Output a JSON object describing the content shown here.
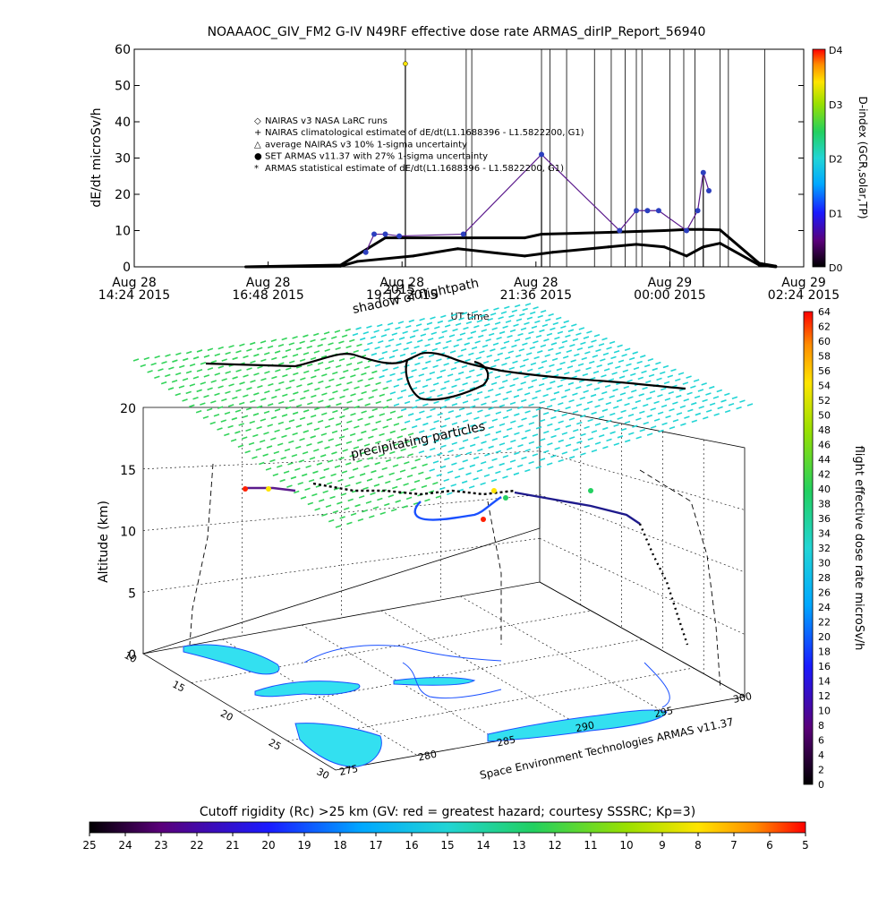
{
  "top_title": "NOAAAOC_GIV_FM2 G-IV    N49RF   effective dose rate ARMAS_dirIP_Report_56940",
  "footer_credit": "Space Environment Technologies ARMAS v11.37",
  "annotations": {
    "shadow": "shadow of flightpath",
    "precip": "precipitating particles",
    "date_overlap": "2015"
  },
  "colors": {
    "flight_black": "#000000",
    "nairas_purple": "#5b1a8c",
    "armas_blue": "#2c3fbf",
    "grid_green": "#33d35a",
    "grid_cyan": "#22d5d5",
    "land_cyan": "#33e0f0"
  },
  "chart_data": [
    {
      "type": "line",
      "ylabel": "dE/dt microSv/h",
      "xlabel": "UT time",
      "ylim": [
        0,
        60
      ],
      "yticks": [
        "0",
        "10",
        "20",
        "30",
        "40",
        "50",
        "60"
      ],
      "xticks": [
        {
          "d": "Aug 28",
          "t": "14:24 2015"
        },
        {
          "d": "Aug 28",
          "t": "16:48 2015"
        },
        {
          "d": "Aug 28",
          "t": "19:12 2015"
        },
        {
          "d": "Aug 28",
          "t": "21:36 2015"
        },
        {
          "d": "Aug 29",
          "t": "00:00 2015"
        },
        {
          "d": "Aug 29",
          "t": "02:24 2015"
        }
      ],
      "xlim_hours": [
        0,
        12
      ],
      "legend": [
        {
          "symbol": "◇",
          "label": "NAIRAS v3 NASA LaRC runs"
        },
        {
          "symbol": "+",
          "label": "NAIRAS climatological estimate of dE/dt(L1.1688396 - L1.5822200, G1)"
        },
        {
          "symbol": "△",
          "label": "average NAIRAS v3 10% 1-sigma uncertainty"
        },
        {
          "symbol": "●",
          "label": "SET ARMAS v11.37 with 27% 1-sigma uncertainty"
        },
        {
          "symbol": "*",
          "label": "ARMAS statistical estimate of dE/dt(L1.1688396 - L1.5822200, G1)"
        }
      ],
      "legend_position": "upper-center",
      "series": [
        {
          "name": "NAIRAS climatological estimate of dE/dt(L1.1688396 - L1.5822200, G1)",
          "x": [
            2.0,
            3.7,
            4.5,
            7.0,
            7.3,
            8.5,
            9.5,
            9.9,
            10.2,
            10.5,
            11.2,
            11.5
          ],
          "y": [
            0,
            0.5,
            8,
            8,
            9,
            9.5,
            10,
            10.3,
            10.3,
            10.2,
            1,
            0.2
          ]
        },
        {
          "name": "ARMAS statistical estimate of dE/dt(L1.1688396 - L1.5822200, G1)",
          "x": [
            2.0,
            3.7,
            4.0,
            5.0,
            5.8,
            6.5,
            7.0,
            7.5,
            8.5,
            9.0,
            9.5,
            9.9,
            10.2,
            10.5,
            11.2,
            11.5
          ],
          "y": [
            0,
            0.2,
            1.5,
            3,
            5,
            3.8,
            3,
            4,
            5.5,
            6.2,
            5.5,
            3,
            5.5,
            6.5,
            0.5,
            0
          ]
        },
        {
          "name": "SET ARMAS v11.37 with 27% 1-sigma uncertainty",
          "x": [
            4.15,
            4.3,
            4.5,
            4.75,
            5.9,
            7.3,
            8.7,
            9.0,
            9.2,
            9.4,
            9.9,
            10.1,
            10.2,
            10.3
          ],
          "y": [
            4,
            9,
            9,
            8.5,
            9,
            31,
            10,
            15.5,
            15.5,
            15.5,
            10,
            15.5,
            26,
            21
          ]
        }
      ],
      "spikes": [
        {
          "x": 4.86,
          "y": 56
        },
        {
          "x": 7.3,
          "y": 31
        },
        {
          "x": 10.2,
          "y": 26
        }
      ],
      "dindex": {
        "label": "D-index (GCR,solar,TP)",
        "ticks": [
          "D0",
          "D1",
          "D2",
          "D3",
          "D4"
        ],
        "tick_values": [
          0,
          1,
          2,
          3,
          4
        ]
      }
    },
    {
      "type": "3d-flight-track",
      "zlabel": "Altitude (km)",
      "zticks": [
        "0",
        "5",
        "10",
        "15",
        "20"
      ],
      "zlim": [
        0,
        20
      ],
      "lat_ticks": [
        "10",
        "15",
        "20",
        "25",
        "30"
      ],
      "lon_ticks": [
        "275",
        "280",
        "285",
        "290",
        "295",
        "300"
      ],
      "colorbar": {
        "label": "flight effective dose rate microSv/h",
        "ticks": [
          "0",
          "2",
          "4",
          "6",
          "8",
          "10",
          "12",
          "14",
          "16",
          "18",
          "20",
          "22",
          "24",
          "26",
          "28",
          "30",
          "32",
          "34",
          "36",
          "38",
          "40",
          "42",
          "44",
          "46",
          "48",
          "50",
          "52",
          "54",
          "56",
          "58",
          "60",
          "62",
          "64"
        ],
        "range": [
          0,
          64
        ]
      }
    },
    {
      "type": "colorbar",
      "title": "Cutoff rigidity (Rc) >25 km (GV: red = greatest hazard; courtesy SSSRC; Kp=3)",
      "ticks": [
        "25",
        "24",
        "23",
        "22",
        "21",
        "20",
        "19",
        "18",
        "17",
        "16",
        "15",
        "14",
        "13",
        "12",
        "11",
        "10",
        "9",
        "8",
        "7",
        "6",
        "5"
      ],
      "range": [
        25,
        5
      ]
    }
  ]
}
